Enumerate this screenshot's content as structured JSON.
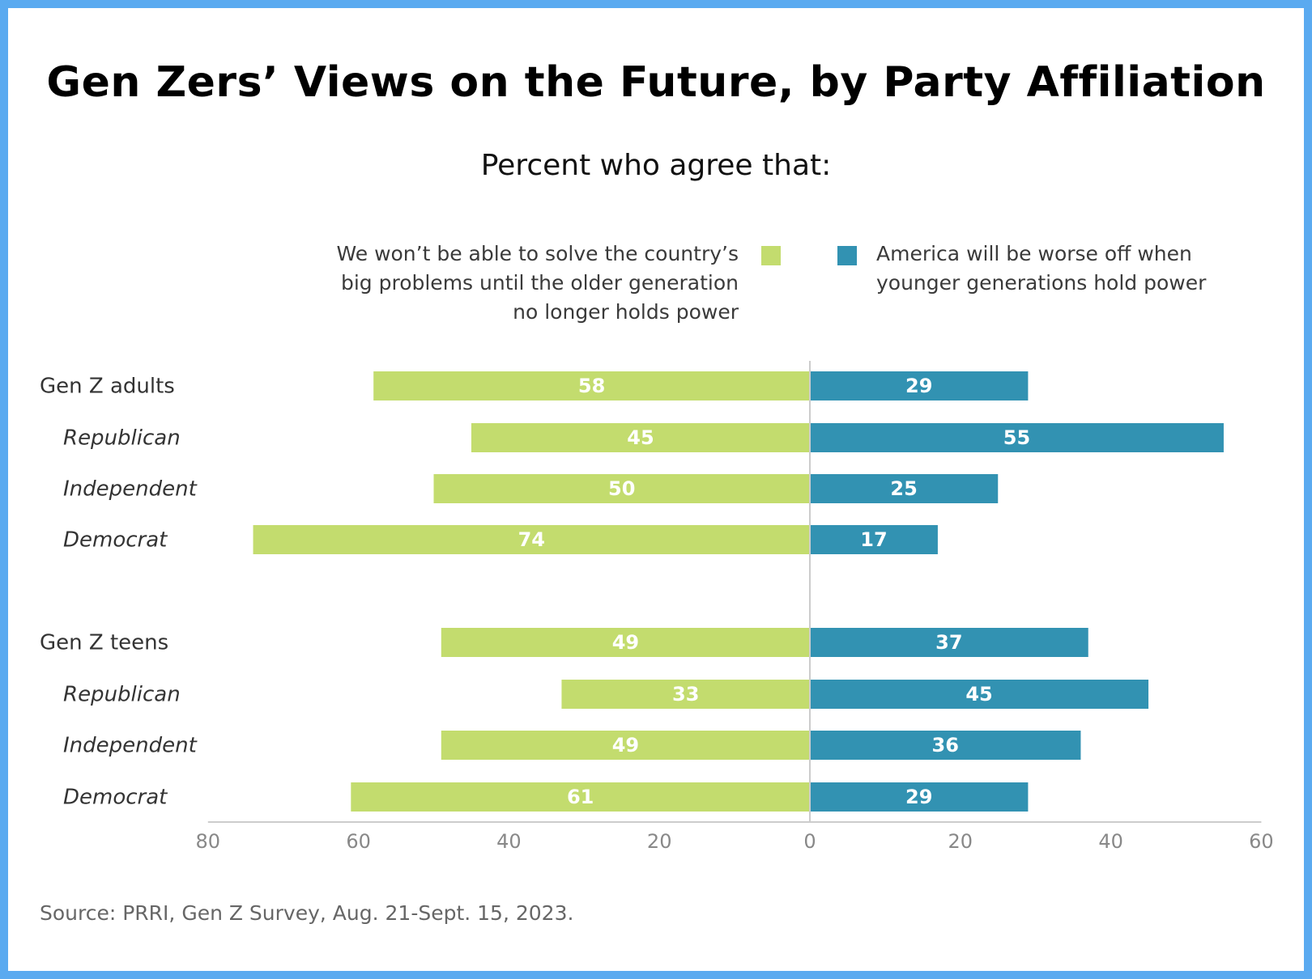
{
  "title": "Gen Zers’ Views on the Future, by Party Affiliation",
  "subtitle": "Percent who agree that:",
  "source": "Source: PRRI, Gen Z Survey, Aug. 21-Sept. 15, 2023.",
  "colors": {
    "left_series": "#c3dc6e",
    "right_series": "#3292b2",
    "border": "#5aaaf0",
    "axis": "#cccccc",
    "center_line": "#cccccc"
  },
  "chart_data": {
    "type": "bar",
    "orientation": "horizontal-diverging",
    "categories": [
      {
        "label": "Gen Z adults",
        "group_header": true
      },
      {
        "label": "Republican",
        "group_header": false
      },
      {
        "label": "Independent",
        "group_header": false
      },
      {
        "label": "Democrat",
        "group_header": false
      },
      {
        "label": "Gen Z teens",
        "group_header": true
      },
      {
        "label": "Republican",
        "group_header": false
      },
      {
        "label": "Independent",
        "group_header": false
      },
      {
        "label": "Democrat",
        "group_header": false
      }
    ],
    "series": [
      {
        "name": "We won’t be able to solve the country’s big problems until the older generation no longer holds power",
        "name_lines": [
          "We won’t be able to solve the country’s",
          "big problems until the older generation",
          "no longer holds power"
        ],
        "side": "left",
        "values": [
          58,
          45,
          50,
          74,
          49,
          33,
          49,
          61
        ]
      },
      {
        "name": "America will be worse off when younger generations hold power",
        "name_lines": [
          "America will be worse off when",
          "younger generations hold power"
        ],
        "side": "right",
        "values": [
          29,
          55,
          25,
          17,
          37,
          45,
          36,
          29
        ]
      }
    ],
    "x_ticks": [
      "80",
      "60",
      "40",
      "20",
      "0",
      "20",
      "40",
      "60"
    ],
    "xlim_left": 80,
    "xlim_right": 60,
    "legend": "top",
    "grid": false
  }
}
